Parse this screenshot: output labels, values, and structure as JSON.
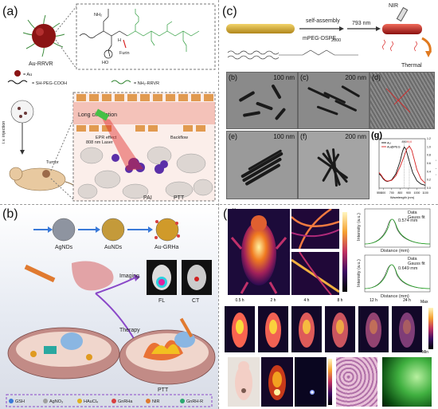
{
  "panel_a": {
    "label": "(a)",
    "legend_au": "= Au",
    "legend_peg": "= SH-PEG-COOH",
    "legend_rrvr": "= NH₂-RRVR",
    "particle_label": "Au-RRVR",
    "furin": "Furin",
    "long_circulation": "Long circulation",
    "epr": "EPR effect",
    "backflow": "Backflow",
    "laser": "808 nm\nLaser",
    "tumor": "Tumor",
    "injection": "i.v. injection",
    "pai": "PAI",
    "ptt": "PTT",
    "amine": "NH₂",
    "ho": "HO",
    "h": "H"
  },
  "panel_b": {
    "label": "(b)",
    "agnds": "AgNDs",
    "aunds": "AuNDs",
    "augrha": "Au-GRHa",
    "imaging": "Imaging",
    "therapy": "Therapy",
    "fl": "FL",
    "ct": "CT",
    "ptt": "PTT",
    "legend": [
      "GSH",
      "AgNO₃",
      "HAuCl₄",
      "GnRHa",
      "NIR",
      "GnRH-R"
    ]
  },
  "panel_c": {
    "label": "(c)",
    "self_assembly": "self-assembly",
    "mpeg": "mPEG-DSPE",
    "mpeg_sub": "2000",
    "wavelength": "793 nm",
    "nir": "NIR",
    "thermal": "Thermal",
    "tem": [
      {
        "id": "(b)",
        "scale": "100 nm"
      },
      {
        "id": "(c)",
        "scale": "200 nm"
      },
      {
        "id": "(d)",
        "scale": ""
      },
      {
        "id": "(e)",
        "scale": "100 nm"
      },
      {
        "id": "(f)",
        "scale": "200 nm"
      }
    ],
    "chart_label": "(g)"
  },
  "panel_d": {
    "label": "(d)",
    "times": [
      "0.5 h",
      "2 h",
      "4 h",
      "8 h",
      "12 h",
      "24 h"
    ],
    "fit_label_1": "0.574 mm",
    "fit_label_2": "0.649 mm",
    "fit_legend": [
      "Data",
      "Gauss fit"
    ],
    "fit_xlabel": "Distance (mm)",
    "fit_ylabel": "Intensity (a.u.)",
    "max": "Max",
    "min": "Min"
  },
  "chart_data": {
    "type": "line",
    "title": "",
    "xlabel": "Wavelength (nm)",
    "ylabel": "Absorption (a.u.)",
    "xlim": [
      550,
      1100
    ],
    "ylim": [
      0,
      1.2
    ],
    "x_ticks": [
      550,
      600,
      700,
      800,
      900,
      1000,
      1100
    ],
    "y_ticks": [
      0,
      0.2,
      0.4,
      0.6,
      0.8,
      1.0,
      1.2
    ],
    "annotations": [
      "850",
      "910"
    ],
    "series": [
      {
        "name": "Au",
        "color": "#111111",
        "x": [
          550,
          575,
          600,
          625,
          650,
          700,
          750,
          800,
          830,
          850,
          870,
          900,
          950,
          1000,
          1050,
          1100
        ],
        "y": [
          0.35,
          0.3,
          0.22,
          0.18,
          0.16,
          0.2,
          0.35,
          0.65,
          0.9,
          1.0,
          0.95,
          0.72,
          0.38,
          0.18,
          0.1,
          0.07
        ]
      },
      {
        "name": "Au@PEG",
        "color": "#d62020",
        "x": [
          550,
          575,
          600,
          625,
          650,
          700,
          750,
          800,
          850,
          880,
          910,
          940,
          975,
          1000,
          1050,
          1100
        ],
        "y": [
          0.38,
          0.32,
          0.24,
          0.19,
          0.17,
          0.19,
          0.3,
          0.52,
          0.78,
          0.95,
          1.02,
          0.92,
          0.65,
          0.45,
          0.22,
          0.12
        ]
      }
    ]
  }
}
